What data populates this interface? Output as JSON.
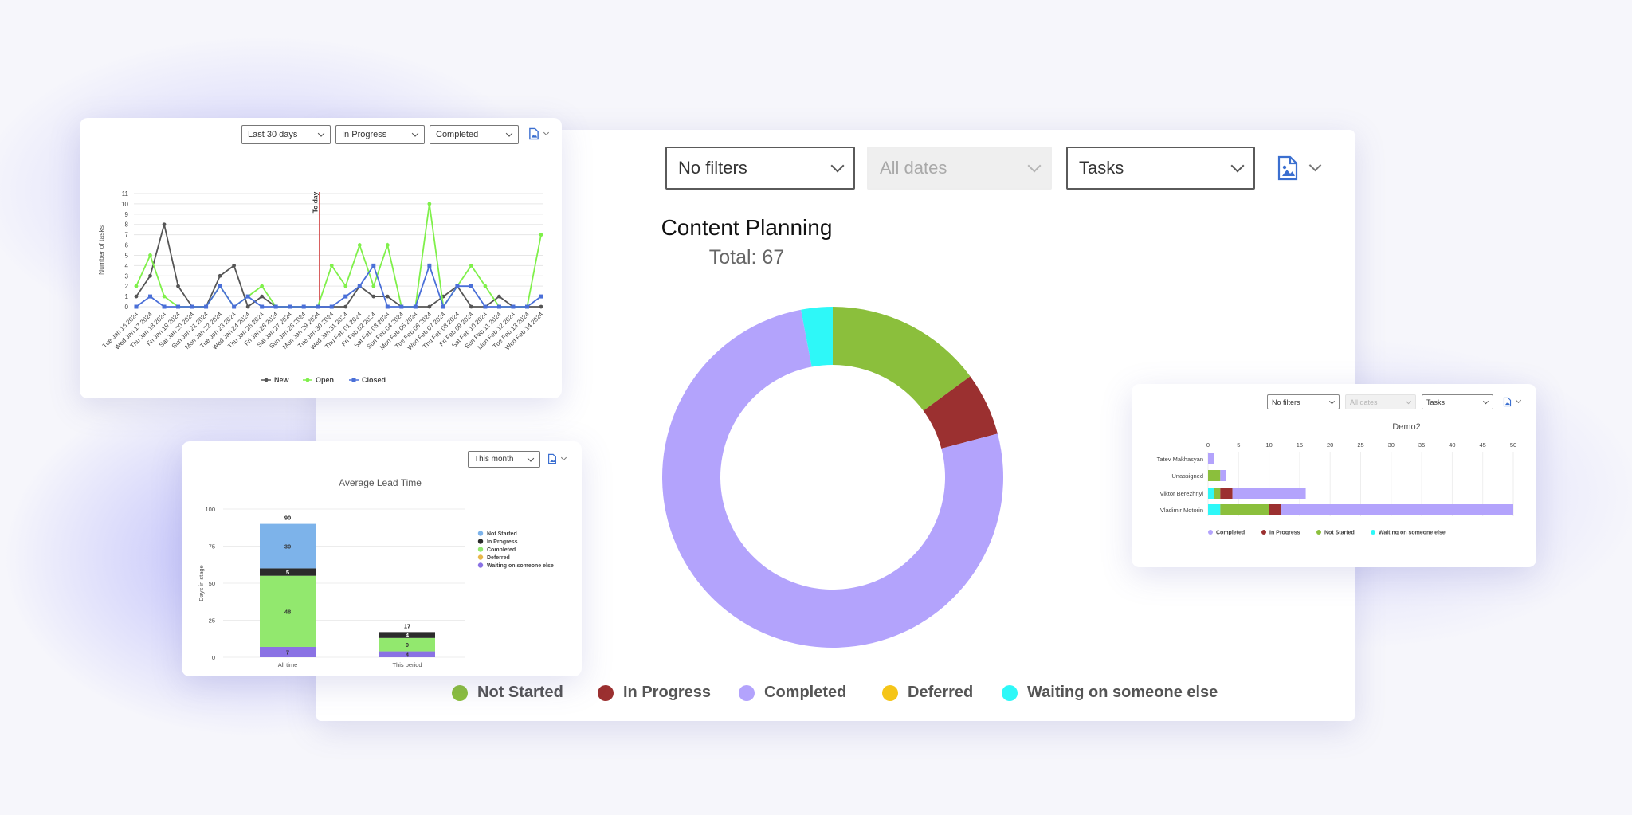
{
  "main": {
    "filters": {
      "filter": "No filters",
      "dates": "All dates",
      "entity": "Tasks"
    },
    "title": "Content Planning",
    "total": "Total: 67",
    "chart_data": {
      "type": "pie",
      "title": "Content Planning",
      "subtitle": "Total: 67",
      "slices": [
        {
          "label": "Not Started",
          "value": 10,
          "color": "#8bbf3c"
        },
        {
          "label": "In Progress",
          "value": 4,
          "color": "#9b3030"
        },
        {
          "label": "Completed",
          "value": 51,
          "color": "#b3a3fc"
        },
        {
          "label": "Deferred",
          "value": 0,
          "color": "#f5c518"
        },
        {
          "label": "Waiting on someone else",
          "value": 2,
          "color": "#2ef8f8"
        }
      ],
      "legend": "bottom"
    }
  },
  "trend": {
    "filters": {
      "period": "Last 30 days",
      "status1": "In Progress",
      "status2": "Completed"
    },
    "today_label": "To day",
    "chart_data": {
      "type": "line",
      "ylabel": "Number of tasks",
      "ylim": [
        0,
        11
      ],
      "yticks": [
        "0",
        "1",
        "2",
        "3",
        "4",
        "5",
        "6",
        "7",
        "8",
        "9",
        "10",
        "11"
      ],
      "x": [
        "Tue Jan 16 2024",
        "Wed Jan 17 2024",
        "Thu Jan 18 2024",
        "Fri Jan 19 2024",
        "Sat Jan 20 2024",
        "Sun Jan 21 2024",
        "Mon Jan 22 2024",
        "Tue Jan 23 2024",
        "Wed Jan 24 2024",
        "Thu Jan 25 2024",
        "Fri Jan 26 2024",
        "Sat Jan 27 2024",
        "Sun Jan 28 2024",
        "Mon Jan 29 2024",
        "Tue Jan 30 2024",
        "Wed Jan 31 2024",
        "Thu Feb 01 2024",
        "Fri Feb 02 2024",
        "Sat Feb 03 2024",
        "Sun Feb 04 2024",
        "Mon Feb 05 2024",
        "Tue Feb 06 2024",
        "Wed Feb 07 2024",
        "Thu Feb 08 2024",
        "Fri Feb 09 2024",
        "Sat Feb 10 2024",
        "Sun Feb 11 2024",
        "Mon Feb 12 2024",
        "Tue Feb 13 2024",
        "Wed Feb 14 2024"
      ],
      "today": "Mon Jan 29 2024",
      "series": [
        {
          "name": "New",
          "color": "#555555",
          "values": [
            1,
            3,
            8,
            2,
            0,
            0,
            3,
            4,
            0,
            1,
            0,
            0,
            0,
            0,
            0,
            0,
            2,
            1,
            1,
            0,
            0,
            0,
            1,
            2,
            0,
            0,
            1,
            0,
            0,
            0
          ]
        },
        {
          "name": "Open",
          "color": "#7ff04a",
          "values": [
            2,
            5,
            1,
            0,
            0,
            0,
            2,
            0,
            1,
            2,
            0,
            0,
            0,
            0,
            4,
            2,
            6,
            2,
            6,
            0,
            0,
            10,
            0,
            2,
            4,
            2,
            0,
            0,
            0,
            7
          ]
        },
        {
          "name": "Closed",
          "color": "#4a6fd8",
          "values": [
            0,
            1,
            0,
            0,
            0,
            0,
            2,
            0,
            1,
            0,
            0,
            0,
            0,
            0,
            0,
            1,
            2,
            4,
            0,
            0,
            0,
            4,
            0,
            2,
            2,
            0,
            0,
            0,
            0,
            1
          ]
        }
      ],
      "legend": "bottom"
    }
  },
  "lead": {
    "filters": {
      "period": "This month"
    },
    "chart_data": {
      "type": "bar",
      "title": "Average Lead Time",
      "ylabel": "Days in stage",
      "ylim": [
        0,
        100
      ],
      "yticks": [
        "0",
        "25",
        "50",
        "75",
        "100"
      ],
      "categories": [
        "All time",
        "This period"
      ],
      "totals": [
        "90",
        "17"
      ],
      "series": [
        {
          "name": "Not Started",
          "color": "#7db3ea",
          "values": [
            30,
            0
          ]
        },
        {
          "name": "In Progress",
          "color": "#2b2b2b",
          "values": [
            5,
            4
          ]
        },
        {
          "name": "Completed",
          "color": "#92e86e",
          "values": [
            48,
            9
          ]
        },
        {
          "name": "Deferred",
          "color": "#e8b84a",
          "values": [
            0,
            0
          ]
        },
        {
          "name": "Waiting on someone else",
          "color": "#8a72e4",
          "values": [
            7,
            4
          ]
        }
      ],
      "segment_labels": [
        [
          "30",
          "5",
          "48",
          "7"
        ],
        [
          "4",
          "9",
          "4"
        ]
      ],
      "legend": "right"
    }
  },
  "demo": {
    "filters": {
      "filter": "No filters",
      "dates": "All dates",
      "entity": "Tasks"
    },
    "chart_data": {
      "type": "bar",
      "orientation": "horizontal",
      "title": "Demo2",
      "xlim": [
        0,
        50
      ],
      "xticks": [
        "0",
        "5",
        "10",
        "15",
        "20",
        "25",
        "30",
        "35",
        "40",
        "45",
        "50"
      ],
      "categories": [
        "Tatev Makhasyan",
        "Unassigned",
        "Viktor Berezhnyi",
        "Vladimir Motorin"
      ],
      "series": [
        {
          "name": "Waiting on someone else",
          "color": "#2ef8f8",
          "values": [
            0,
            0,
            1,
            2
          ]
        },
        {
          "name": "Not Started",
          "color": "#8bbf3c",
          "values": [
            0,
            2,
            1,
            8
          ]
        },
        {
          "name": "In Progress",
          "color": "#9b3030",
          "values": [
            0,
            0,
            2,
            2
          ]
        },
        {
          "name": "Completed",
          "color": "#b3a3fc",
          "values": [
            1,
            1,
            12,
            38
          ]
        }
      ],
      "legend_order": [
        "Completed",
        "In Progress",
        "Not Started",
        "Waiting on someone else"
      ],
      "legend": "bottom"
    }
  }
}
